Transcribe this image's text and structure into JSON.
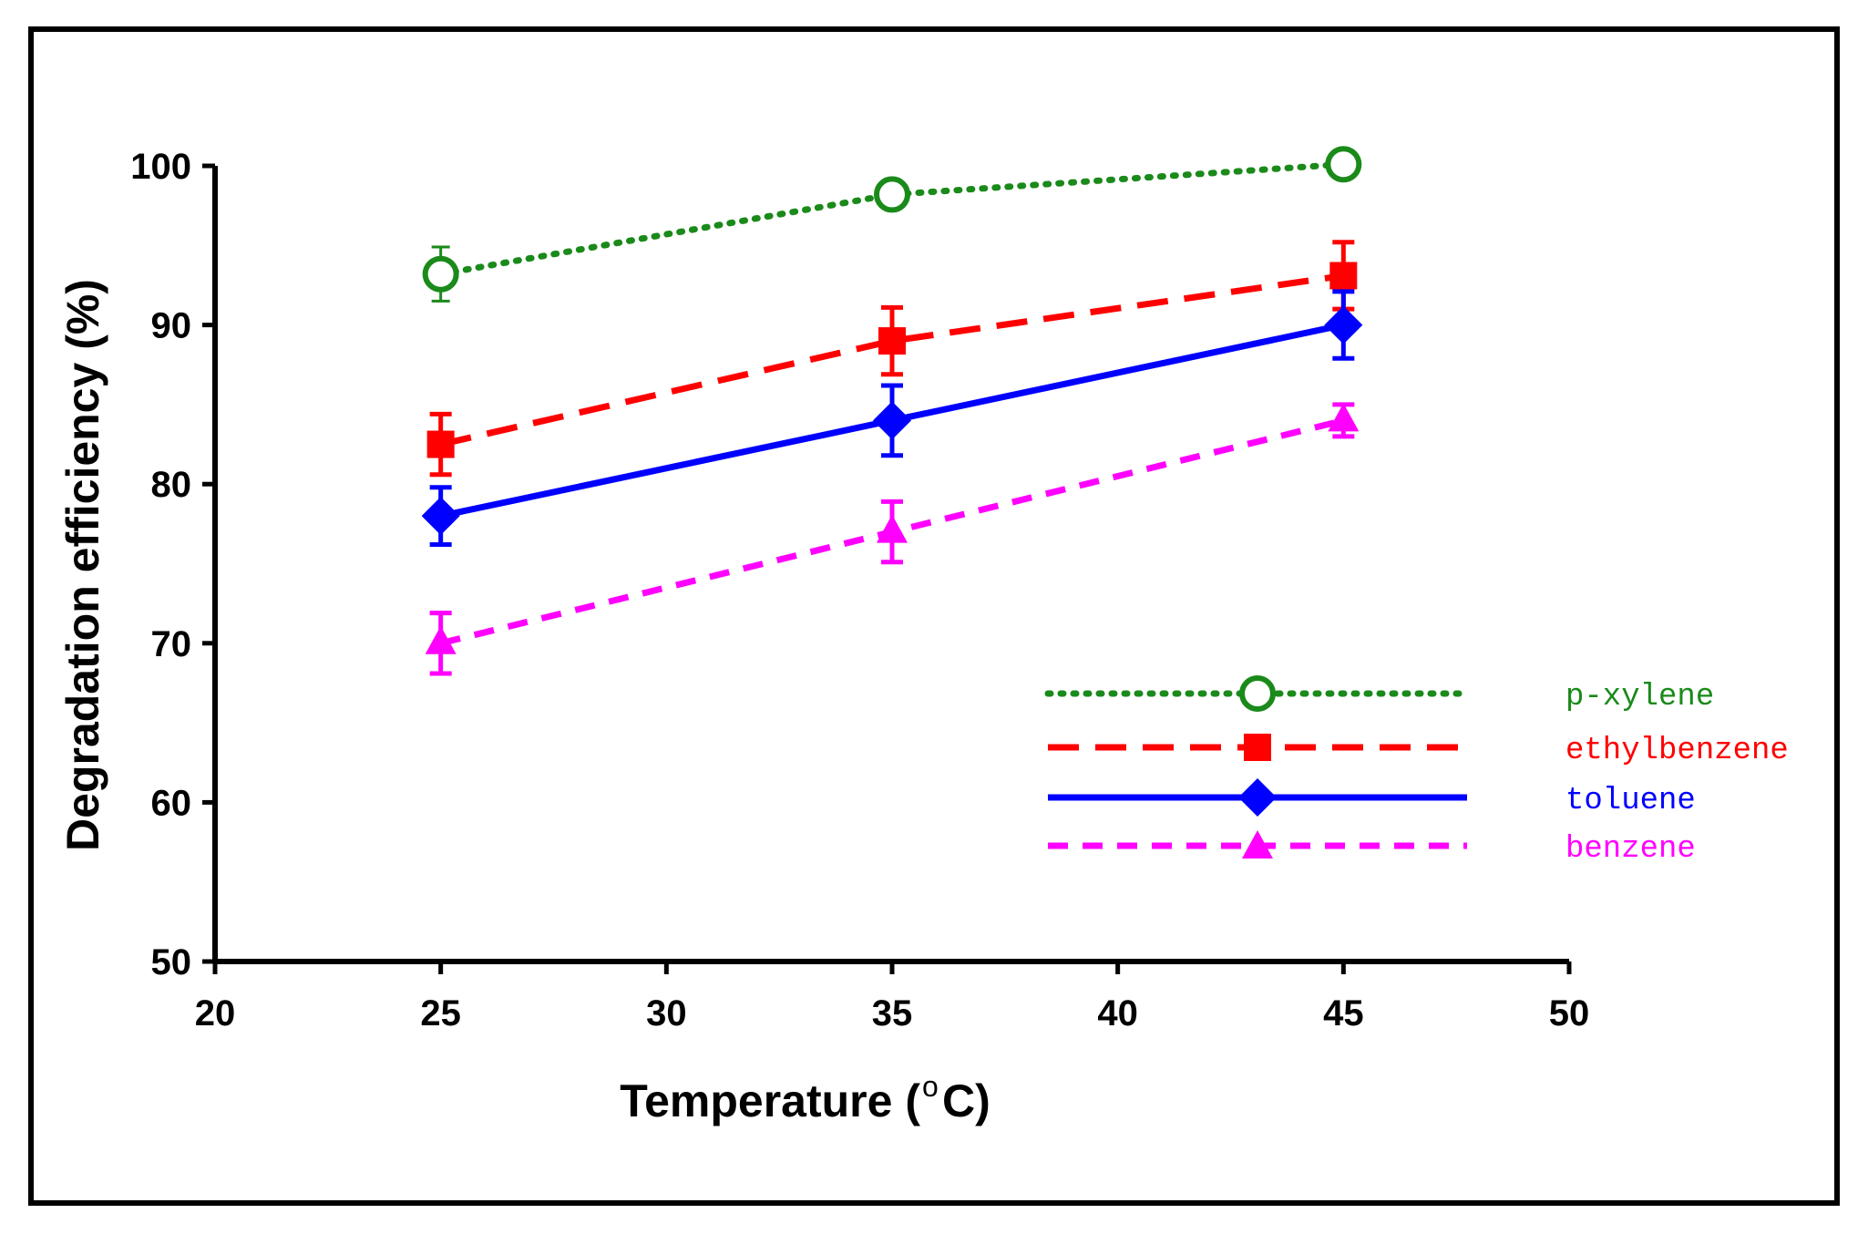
{
  "chart_data": {
    "type": "line",
    "xlabel": "Temperature (",
    "xlabel_sup": "o",
    "xlabel_tail": "C)",
    "ylabel": "Degradation efficiency (%)",
    "xlim": [
      20,
      50
    ],
    "ylim": [
      50,
      100
    ],
    "x_ticks": [
      20,
      25,
      30,
      35,
      40,
      45,
      50
    ],
    "y_ticks": [
      50,
      60,
      70,
      80,
      90,
      100
    ],
    "grid": false,
    "legend_placement": "lower-right",
    "x": [
      25,
      35,
      45
    ],
    "series": [
      {
        "name": "p-xylene",
        "color": "#1a8a1a",
        "style": "dotted",
        "marker": "open-circle",
        "values": [
          93.2,
          98.2,
          100.1
        ],
        "errors": [
          1.7,
          0.0,
          0.0
        ]
      },
      {
        "name": "ethylbenzene",
        "color": "#ff0000",
        "style": "long-dash",
        "marker": "square",
        "values": [
          82.5,
          89.0,
          93.1
        ],
        "errors": [
          1.9,
          2.1,
          2.1
        ]
      },
      {
        "name": "toluene",
        "color": "#0000ff",
        "style": "solid",
        "marker": "diamond",
        "values": [
          78.0,
          84.0,
          90.0
        ],
        "errors": [
          1.8,
          2.2,
          2.1
        ]
      },
      {
        "name": "benzene",
        "color": "#ff00ff",
        "style": "dash",
        "marker": "triangle",
        "values": [
          70.0,
          77.0,
          84.0
        ],
        "errors": [
          1.9,
          1.9,
          1.0
        ]
      }
    ]
  }
}
